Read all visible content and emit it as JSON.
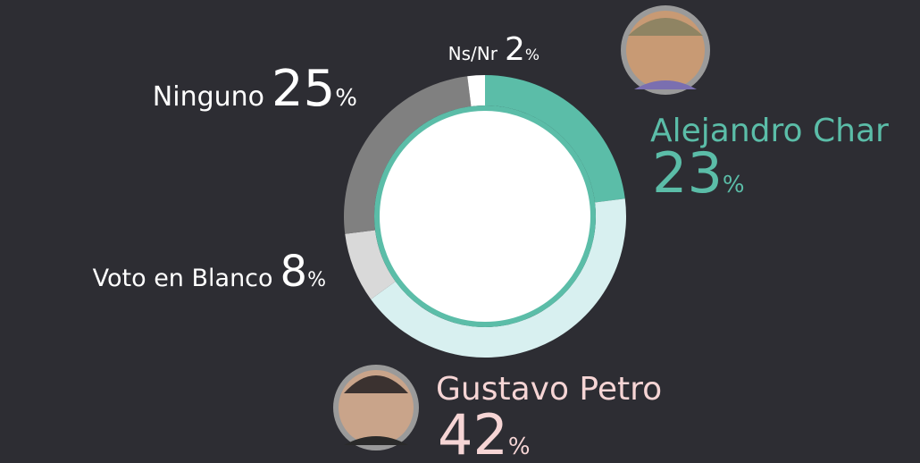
{
  "chart_data": {
    "type": "donut",
    "categories": [
      "Alejandro Char",
      "Gustavo Petro",
      "Voto en Blanco",
      "Ninguno",
      "Ns/Nr"
    ],
    "values": [
      23,
      42,
      8,
      25,
      2
    ],
    "value_labels": [
      "23%",
      "42%",
      "8%",
      "25%",
      "2%"
    ],
    "colors": [
      "#5bbda8",
      "#d8f0f0",
      "#d9d9d9",
      "#808080",
      "#ffffff"
    ],
    "label_colors": [
      "#5bbda8",
      "#f6d5d5",
      "#ffffff",
      "#ffffff",
      "#ffffff"
    ]
  }
}
